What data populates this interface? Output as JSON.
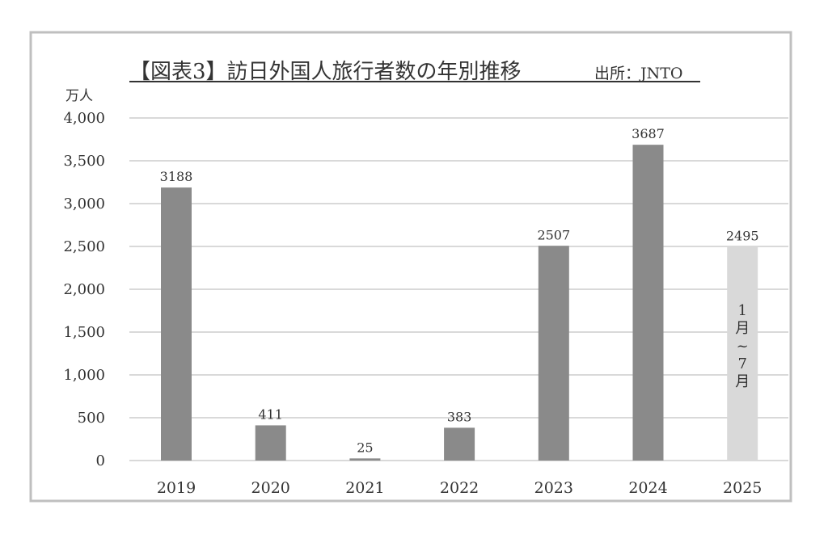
{
  "chart_data": {
    "type": "bar",
    "title": "【図表3】訪日外国人旅行者数の年別推移",
    "source": "出所：JNTO",
    "ylabel": "万人",
    "categories": [
      "2019",
      "2020",
      "2021",
      "2022",
      "2023",
      "2024",
      "2025"
    ],
    "values": [
      3188,
      411,
      25,
      383,
      2507,
      3687,
      2495
    ],
    "data_labels": [
      "3188",
      "411",
      "25",
      "383",
      "2507",
      "3687",
      "2495"
    ],
    "ylim": [
      0,
      4000
    ],
    "yticks": [
      0,
      500,
      1000,
      1500,
      2000,
      2500,
      3000,
      3500,
      4000
    ],
    "ytick_labels": [
      "0",
      "500",
      "1,000",
      "1,500",
      "2,000",
      "2,500",
      "3,000",
      "3,500",
      "4,000"
    ],
    "grid": true,
    "bar_annotation": {
      "category": "2025",
      "text": [
        "1",
        "月",
        "~",
        "7",
        "月"
      ]
    },
    "colors": {
      "bar": "#8a8a8a",
      "highlight_bar": "#d9d9d9",
      "grid": "#d9d9d9",
      "frame": "#bfbfbf"
    }
  }
}
